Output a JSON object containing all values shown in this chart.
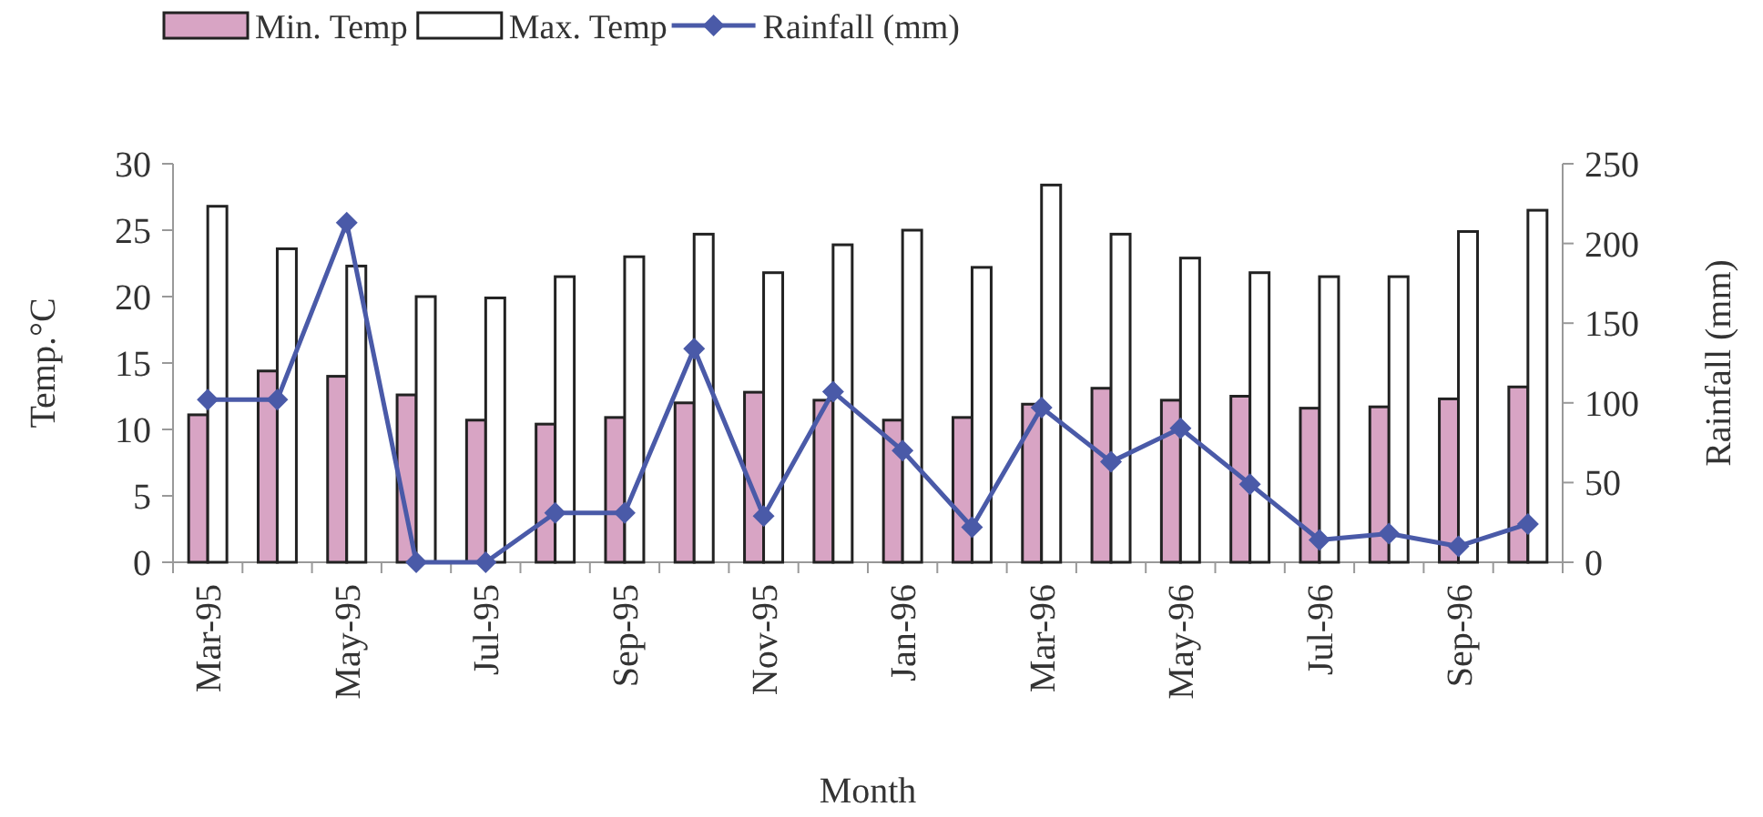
{
  "chart_data": {
    "type": "bar",
    "xlabel": "Month",
    "ylabel": "Temp.°C",
    "y2label": "Rainfall (mm)",
    "categories": [
      "Mar-95",
      null,
      "May-95",
      null,
      "Jul-95",
      null,
      "Sep-95",
      null,
      "Nov-95",
      null,
      "Jan-96",
      null,
      "Mar-96",
      null,
      "May-96",
      null,
      "Jul-96",
      null,
      "Sep-96",
      null
    ],
    "series": [
      {
        "name": "Min. Temp",
        "color": "#d8a4c4",
        "values": [
          11.1,
          14.4,
          14.0,
          12.6,
          10.7,
          10.4,
          10.9,
          12.0,
          12.8,
          12.2,
          10.7,
          10.9,
          11.9,
          13.1,
          12.2,
          12.5,
          11.6,
          11.7,
          12.3,
          13.2
        ]
      },
      {
        "name": "Max. Temp",
        "color": "#ffffff",
        "values": [
          26.8,
          23.6,
          22.3,
          20.0,
          19.9,
          21.5,
          23.0,
          24.7,
          21.8,
          23.9,
          25.0,
          22.2,
          28.4,
          24.7,
          22.9,
          21.8,
          21.5,
          21.5,
          24.9,
          26.5
        ]
      },
      {
        "name": "Rainfall (mm)",
        "type": "line",
        "axis": "y2",
        "color": "#4a5aa8",
        "marker": "diamond",
        "values": [
          102,
          102,
          213,
          0,
          0,
          31,
          31,
          134,
          29,
          107,
          70,
          22,
          97,
          63,
          84,
          49,
          14,
          18,
          10,
          24
        ]
      }
    ],
    "ylim": [
      0,
      30
    ],
    "yticks": [
      0,
      5,
      10,
      15,
      20,
      25,
      30
    ],
    "y2lim": [
      0,
      250
    ],
    "y2ticks": [
      0,
      50,
      100,
      150,
      200,
      250
    ],
    "legend": "top left",
    "grid": false
  }
}
